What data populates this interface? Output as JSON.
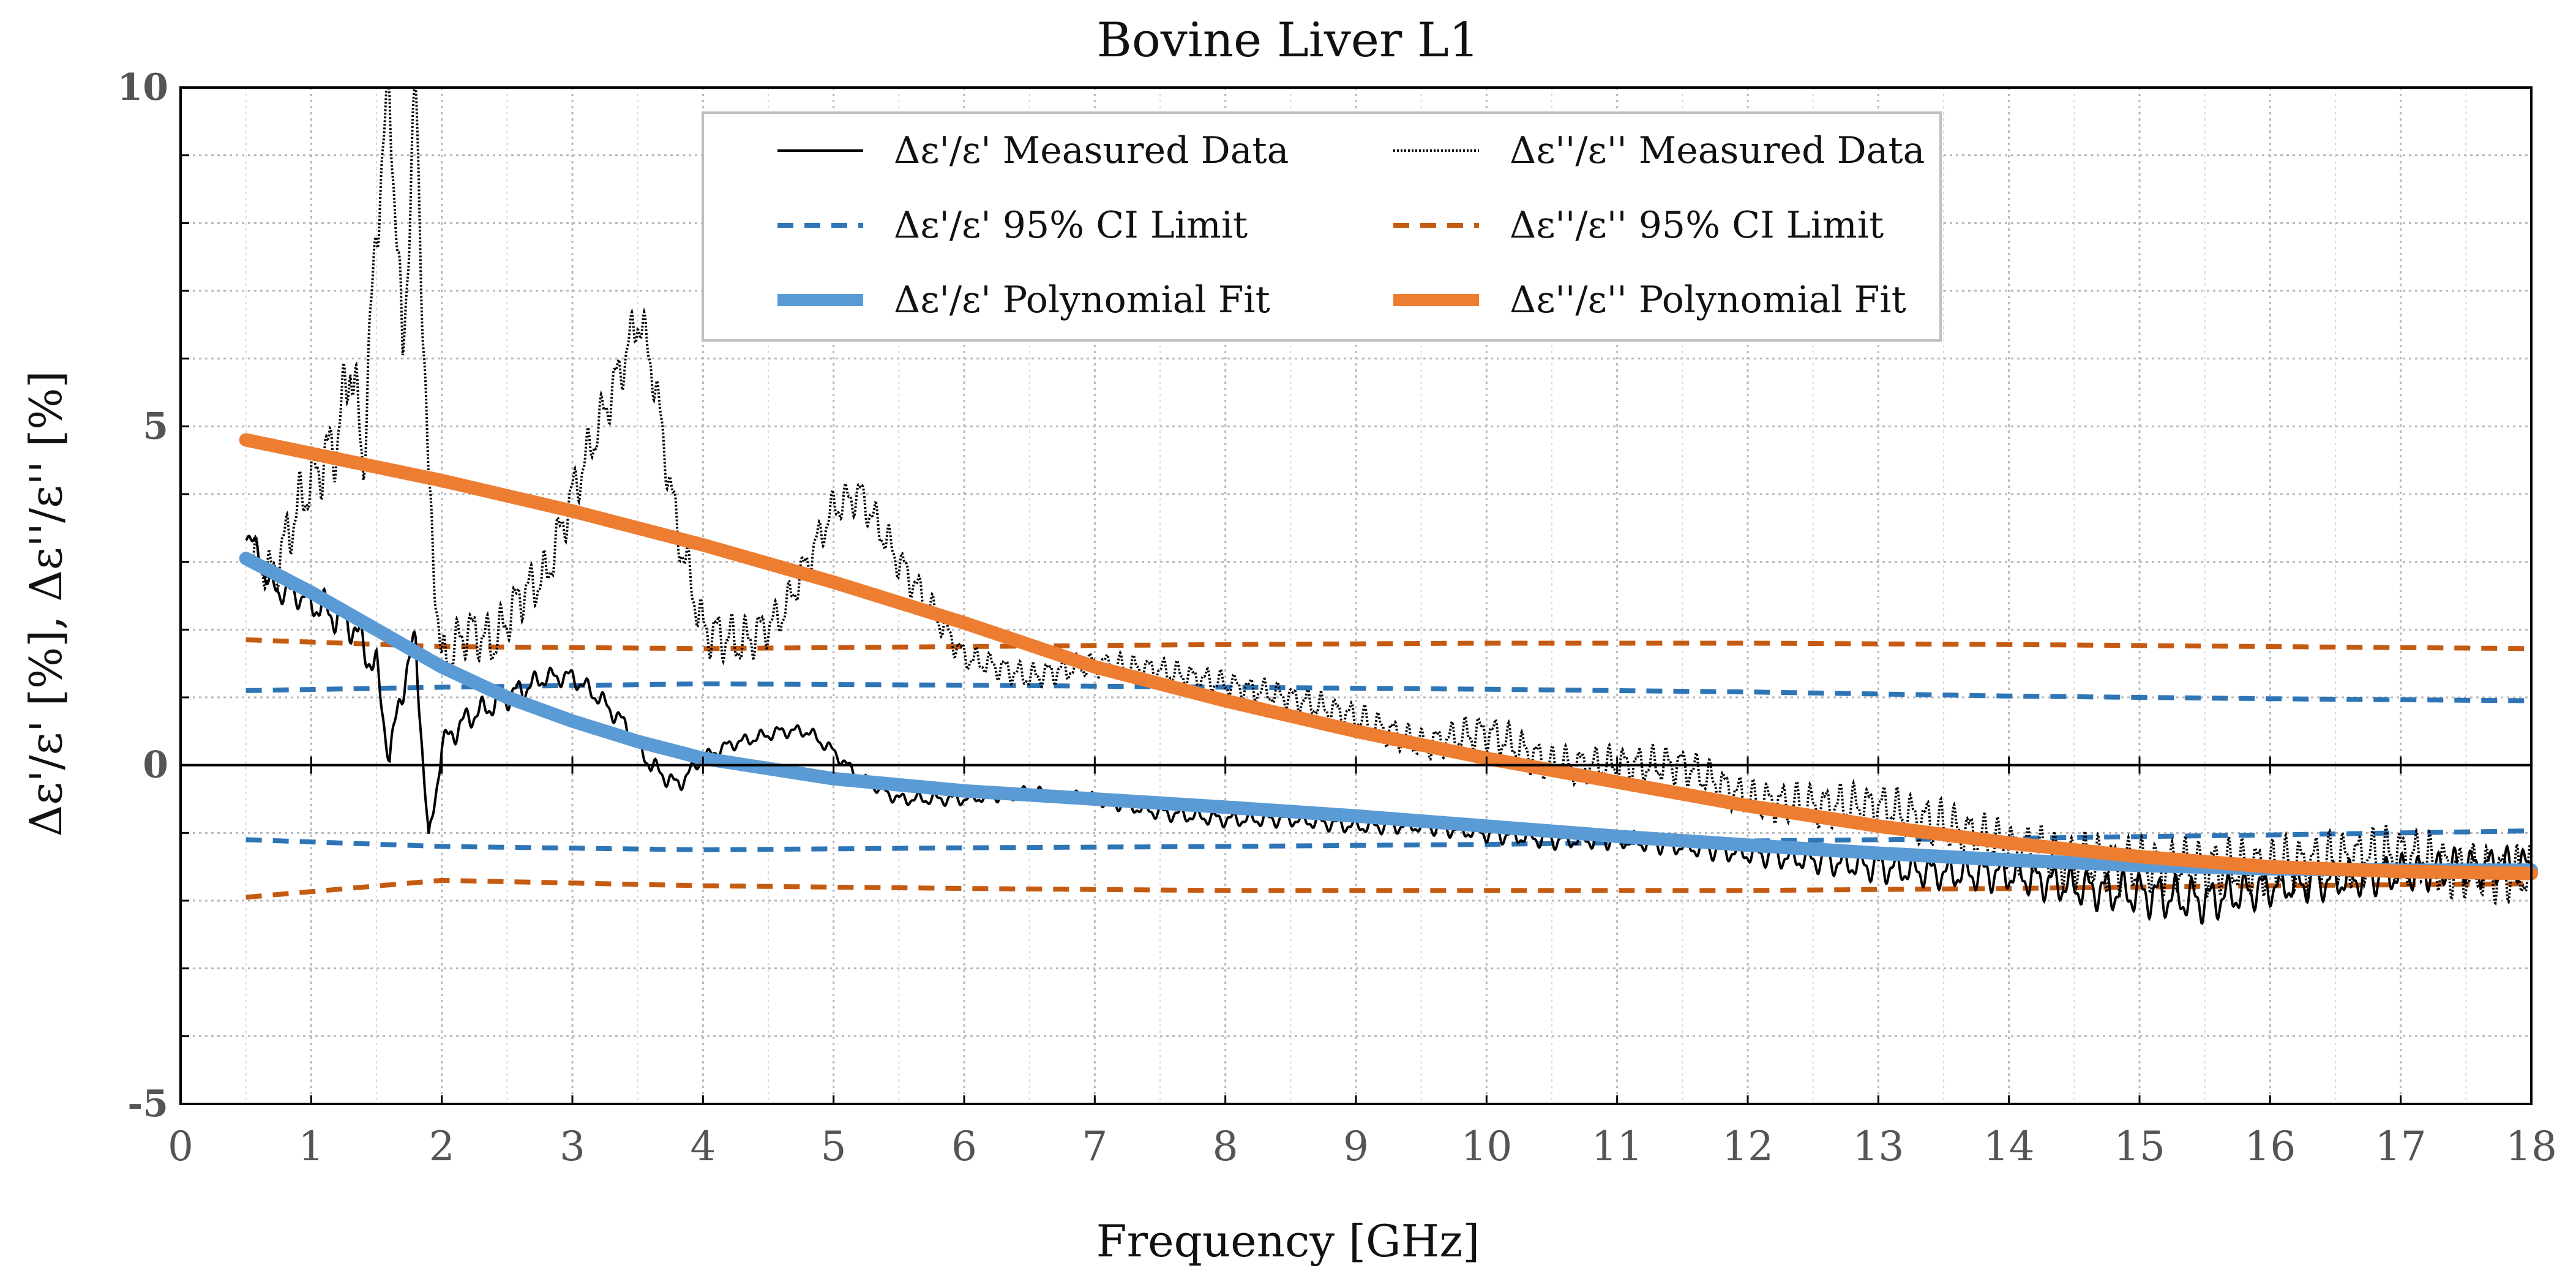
{
  "chart_data": {
    "type": "line",
    "title": "Bovine Liver L1",
    "xlabel": "Frequency [GHz]",
    "ylabel": "Δε'/ε' [%],  Δε''/ε'' [%]",
    "xlim": [
      0,
      18
    ],
    "ylim": [
      -5,
      10
    ],
    "x_ticks": [
      "0",
      "1",
      "2",
      "3",
      "4",
      "5",
      "6",
      "7",
      "8",
      "9",
      "10",
      "11",
      "12",
      "13",
      "14",
      "15",
      "16",
      "17",
      "18"
    ],
    "y_ticks": [
      "-5",
      "0",
      "5",
      "10"
    ],
    "grid": true,
    "legend_position": "top-center",
    "series": [
      {
        "name": "Δε'/ε' Measured Data",
        "style": "solid-thin",
        "color": "#000000",
        "x": [
          0.5,
          0.7,
          0.9,
          1.1,
          1.3,
          1.5,
          1.6,
          1.7,
          1.8,
          1.9,
          2.0,
          2.2,
          2.4,
          2.6,
          2.8,
          3.0,
          3.2,
          3.4,
          3.6,
          3.8,
          4.0,
          4.2,
          4.4,
          4.6,
          4.8,
          5.0,
          5.2,
          5.5,
          6.0,
          6.5,
          7.0,
          7.5,
          8.0,
          8.5,
          9.0,
          9.5,
          10.0,
          10.5,
          11.0,
          11.5,
          12.0,
          12.5,
          13.0,
          13.5,
          14.0,
          14.5,
          15.0,
          15.5,
          16.0,
          16.5,
          17.0,
          17.5,
          18.0
        ],
        "values": [
          3.5,
          2.6,
          2.5,
          2.3,
          2.1,
          1.4,
          0.1,
          1.2,
          1.8,
          -1.2,
          0.3,
          0.7,
          0.9,
          1.1,
          1.3,
          1.3,
          1.0,
          0.6,
          0.0,
          -0.3,
          0.1,
          0.3,
          0.4,
          0.5,
          0.5,
          0.2,
          -0.2,
          -0.5,
          -0.5,
          -0.4,
          -0.5,
          -0.7,
          -0.8,
          -0.8,
          -0.9,
          -0.9,
          -1.0,
          -1.1,
          -1.1,
          -1.2,
          -1.3,
          -1.4,
          -1.5,
          -1.6,
          -1.6,
          -1.8,
          -1.9,
          -2.0,
          -1.8,
          -1.7,
          -1.6,
          -1.5,
          -1.5
        ],
        "noise_amp": [
          0.2,
          0.2,
          0.2,
          0.3,
          0.3,
          0.3,
          0.2,
          0.3,
          0.3,
          0.2,
          0.2,
          0.2,
          0.2,
          0.2,
          0.15,
          0.15,
          0.15,
          0.15,
          0.15,
          0.15,
          0.1,
          0.1,
          0.1,
          0.1,
          0.1,
          0.1,
          0.1,
          0.1,
          0.1,
          0.1,
          0.1,
          0.12,
          0.12,
          0.12,
          0.12,
          0.12,
          0.15,
          0.15,
          0.15,
          0.15,
          0.18,
          0.2,
          0.25,
          0.25,
          0.3,
          0.3,
          0.35,
          0.35,
          0.3,
          0.3,
          0.3,
          0.3,
          0.3
        ]
      },
      {
        "name": "Δε''/ε'' Measured Data",
        "style": "dotted",
        "color": "#000000",
        "x": [
          0.5,
          0.7,
          0.9,
          1.0,
          1.2,
          1.3,
          1.4,
          1.5,
          1.6,
          1.7,
          1.8,
          1.9,
          2.0,
          2.2,
          2.4,
          2.6,
          2.8,
          3.0,
          3.2,
          3.4,
          3.5,
          3.6,
          3.8,
          4.0,
          4.3,
          4.6,
          4.8,
          5.0,
          5.2,
          5.5,
          6.0,
          6.5,
          7.0,
          7.5,
          8.0,
          8.5,
          9.0,
          9.5,
          10.0,
          10.5,
          11.0,
          11.5,
          12.0,
          12.5,
          13.0,
          13.5,
          14.0,
          14.5,
          15.0,
          15.5,
          16.0,
          16.5,
          17.0,
          17.5,
          18.0
        ],
        "values": [
          3.2,
          2.8,
          3.8,
          4.2,
          4.8,
          6.0,
          4.5,
          8.0,
          10.0,
          6.0,
          10.0,
          4.0,
          1.5,
          2.0,
          1.8,
          2.5,
          2.8,
          4.0,
          5.0,
          6.0,
          6.6,
          6.0,
          3.5,
          2.0,
          1.8,
          2.2,
          3.0,
          3.8,
          4.0,
          3.0,
          1.6,
          1.3,
          1.5,
          1.4,
          1.2,
          1.0,
          0.7,
          0.3,
          0.5,
          0.0,
          0.0,
          0.0,
          -0.5,
          -0.6,
          -0.6,
          -0.9,
          -1.2,
          -1.4,
          -1.5,
          -1.5,
          -1.5,
          -1.4,
          -1.3,
          -1.6,
          -1.6
        ],
        "noise_amp": [
          0.3,
          0.4,
          0.5,
          0.5,
          0.6,
          0.6,
          0.6,
          0.6,
          0.6,
          0.6,
          0.6,
          0.5,
          0.4,
          0.4,
          0.4,
          0.4,
          0.4,
          0.4,
          0.4,
          0.4,
          0.4,
          0.4,
          0.4,
          0.4,
          0.4,
          0.3,
          0.3,
          0.3,
          0.3,
          0.3,
          0.2,
          0.2,
          0.2,
          0.2,
          0.2,
          0.2,
          0.25,
          0.25,
          0.3,
          0.3,
          0.3,
          0.3,
          0.3,
          0.35,
          0.35,
          0.4,
          0.4,
          0.45,
          0.45,
          0.45,
          0.45,
          0.45,
          0.45,
          0.45,
          0.45
        ]
      },
      {
        "name": "Δε'/ε' 95% CI Limit",
        "style": "dashed",
        "color": "#2e75b6",
        "x": [
          0.5,
          2,
          4,
          6,
          8,
          10,
          12,
          14,
          16,
          18
        ],
        "values": [
          1.1,
          1.15,
          1.2,
          1.18,
          1.15,
          1.12,
          1.08,
          1.02,
          0.98,
          0.95
        ],
        "lower": [
          -1.1,
          -1.2,
          -1.25,
          -1.22,
          -1.2,
          -1.17,
          -1.12,
          -1.08,
          -1.03,
          -0.97
        ]
      },
      {
        "name": "Δε''/ε'' 95% CI Limit",
        "style": "dashed",
        "color": "#c55a11",
        "x": [
          0.5,
          2,
          4,
          6,
          8,
          10,
          12,
          14,
          16,
          18
        ],
        "values": [
          1.85,
          1.75,
          1.72,
          1.75,
          1.78,
          1.8,
          1.8,
          1.78,
          1.75,
          1.72
        ],
        "lower": [
          -1.95,
          -1.7,
          -1.78,
          -1.82,
          -1.85,
          -1.85,
          -1.85,
          -1.82,
          -1.78,
          -1.75
        ]
      },
      {
        "name": "Δε'/ε' Polynomial Fit",
        "style": "solid-thick",
        "color": "#5b9bd5",
        "x": [
          0.5,
          1,
          1.5,
          2,
          2.5,
          3,
          3.5,
          4,
          5,
          6,
          7,
          8,
          9,
          10,
          11,
          12,
          13,
          14,
          15,
          16,
          17,
          18
        ],
        "values": [
          3.05,
          2.55,
          2.0,
          1.45,
          1.0,
          0.65,
          0.35,
          0.1,
          -0.2,
          -0.38,
          -0.5,
          -0.62,
          -0.75,
          -0.9,
          -1.05,
          -1.18,
          -1.3,
          -1.4,
          -1.48,
          -1.53,
          -1.55,
          -1.55
        ]
      },
      {
        "name": "Δε''/ε'' Polynomial Fit",
        "style": "solid-thick",
        "color": "#ed7d31",
        "x": [
          0.5,
          1,
          2,
          3,
          4,
          5,
          6,
          7,
          8,
          9,
          10,
          11,
          12,
          13,
          14,
          15,
          16,
          17,
          18
        ],
        "values": [
          4.8,
          4.6,
          4.2,
          3.75,
          3.25,
          2.7,
          2.1,
          1.45,
          0.95,
          0.5,
          0.1,
          -0.25,
          -0.6,
          -0.9,
          -1.15,
          -1.35,
          -1.5,
          -1.57,
          -1.6
        ]
      }
    ]
  }
}
